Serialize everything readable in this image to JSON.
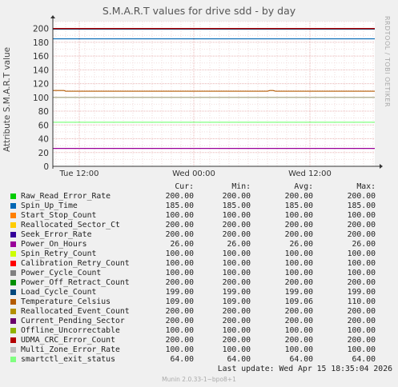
{
  "title": "S.M.A.R.T values for drive sdd - by day",
  "side_text": "RRDTOOL / TOBI OETIKER",
  "ylabel": "Attribute S.M.A.R.T value",
  "columns": [
    "Cur:",
    "Min:",
    "Avg:",
    "Max:"
  ],
  "last_update": "Last update:  Wed Apr 15 18:35:04 2026",
  "version": "Munin 2.0.33-1~bpo8+1",
  "chart_data": {
    "type": "line",
    "x_ticks": [
      "Tue 12:00",
      "Wed 00:00",
      "Wed 12:00"
    ],
    "ylim": [
      0,
      210
    ],
    "y_ticks": [
      0,
      20,
      40,
      60,
      80,
      100,
      120,
      140,
      160,
      180,
      200
    ],
    "grid": true,
    "series": [
      {
        "name": "Raw_Read_Error_Rate",
        "color": "#00cc00",
        "cur": "200.00",
        "min": "200.00",
        "avg": "200.00",
        "max": "200.00",
        "value": 200
      },
      {
        "name": "Spin_Up_Time",
        "color": "#0066b3",
        "cur": "185.00",
        "min": "185.00",
        "avg": "185.00",
        "max": "185.00",
        "value": 185
      },
      {
        "name": "Start_Stop_Count",
        "color": "#ff8000",
        "cur": "100.00",
        "min": "100.00",
        "avg": "100.00",
        "max": "100.00",
        "value": 100
      },
      {
        "name": "Reallocated_Sector_Ct",
        "color": "#ffcc00",
        "cur": "200.00",
        "min": "200.00",
        "avg": "200.00",
        "max": "200.00",
        "value": 200
      },
      {
        "name": "Seek_Error_Rate",
        "color": "#330099",
        "cur": "200.00",
        "min": "200.00",
        "avg": "200.00",
        "max": "200.00",
        "value": 200
      },
      {
        "name": "Power_On_Hours",
        "color": "#990099",
        "cur": "26.00",
        "min": "26.00",
        "avg": "26.00",
        "max": "26.00",
        "value": 26
      },
      {
        "name": "Spin_Retry_Count",
        "color": "#ccff00",
        "cur": "100.00",
        "min": "100.00",
        "avg": "100.00",
        "max": "100.00",
        "value": 100
      },
      {
        "name": "Calibration_Retry_Count",
        "color": "#ff0000",
        "cur": "100.00",
        "min": "100.00",
        "avg": "100.00",
        "max": "100.00",
        "value": 100
      },
      {
        "name": "Power_Cycle_Count",
        "color": "#808080",
        "cur": "100.00",
        "min": "100.00",
        "avg": "100.00",
        "max": "100.00",
        "value": 100
      },
      {
        "name": "Power_Off_Retract_Count",
        "color": "#008f00",
        "cur": "200.00",
        "min": "200.00",
        "avg": "200.00",
        "max": "200.00",
        "value": 200
      },
      {
        "name": "Load_Cycle_Count",
        "color": "#00487d",
        "cur": "199.00",
        "min": "199.00",
        "avg": "199.00",
        "max": "199.00",
        "value": 199
      },
      {
        "name": "Temperature_Celsius",
        "color": "#b35a00",
        "cur": "109.00",
        "min": "109.00",
        "avg": "109.06",
        "max": "110.00",
        "value": 109,
        "bump": 110
      },
      {
        "name": "Reallocated_Event_Count",
        "color": "#b38f00",
        "cur": "200.00",
        "min": "200.00",
        "avg": "200.00",
        "max": "200.00",
        "value": 200
      },
      {
        "name": "Current_Pending_Sector",
        "color": "#6b006b",
        "cur": "200.00",
        "min": "200.00",
        "avg": "200.00",
        "max": "200.00",
        "value": 200
      },
      {
        "name": "Offline_Uncorrectable",
        "color": "#8fb300",
        "cur": "100.00",
        "min": "100.00",
        "avg": "100.00",
        "max": "100.00",
        "value": 100
      },
      {
        "name": "UDMA_CRC_Error_Count",
        "color": "#b30000",
        "cur": "200.00",
        "min": "200.00",
        "avg": "200.00",
        "max": "200.00",
        "value": 200
      },
      {
        "name": "Multi_Zone_Error_Rate",
        "color": "#bebebe",
        "cur": "100.00",
        "min": "100.00",
        "avg": "100.00",
        "max": "100.00",
        "value": 100
      },
      {
        "name": "smartctl_exit_status",
        "color": "#80ff80",
        "cur": "64.00",
        "min": "64.00",
        "avg": "64.00",
        "max": "64.00",
        "value": 64
      }
    ]
  }
}
